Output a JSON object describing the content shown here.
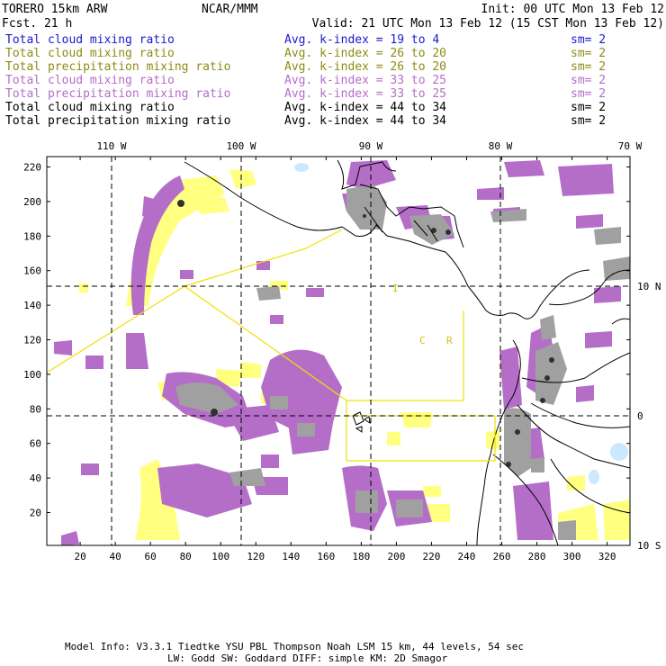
{
  "header": {
    "model": "TORERO  15km ARW",
    "org": "NCAR/MMM",
    "init": "Init: 00 UTC Mon 13 Feb 12",
    "fcst": "Fcst.   21 h",
    "valid": "Valid: 21 UTC Mon 13 Feb 12 (15 CST Mon 13 Feb 12)"
  },
  "legend": [
    {
      "field": "Total cloud mixing ratio",
      "kindex": "Avg. k-index =  19  to   4",
      "sm": "sm= 2",
      "color": "#1a1acc"
    },
    {
      "field": "Total cloud mixing ratio",
      "kindex": "Avg. k-index =  26  to  20",
      "sm": "sm= 2",
      "color": "#8c8c14"
    },
    {
      "field": "Total precipitation mixing ratio",
      "kindex": "Avg. k-index =  26  to  20",
      "sm": "sm= 2",
      "color": "#8c8c14"
    },
    {
      "field": "Total cloud mixing ratio",
      "kindex": "Avg. k-index =  33  to  25",
      "sm": "sm= 2",
      "color": "#b46ec8"
    },
    {
      "field": "Total precipitation mixing ratio",
      "kindex": "Avg. k-index =  33  to  25",
      "sm": "sm= 2",
      "color": "#b46ec8"
    },
    {
      "field": "Total cloud mixing ratio",
      "kindex": "Avg. k-index =  44  to  34",
      "sm": "sm= 2",
      "color": "#000000"
    },
    {
      "field": "Total precipitation mixing ratio",
      "kindex": "Avg. k-index =  44  to  34",
      "sm": "sm= 2",
      "color": "#000000"
    }
  ],
  "lon_labels": [
    "110 W",
    "100 W",
    "90 W",
    "80 W",
    "70 W"
  ],
  "lat_labels": [
    "10 N",
    "0",
    "10 S"
  ],
  "x_ticks": [
    "20",
    "40",
    "60",
    "80",
    "100",
    "120",
    "140",
    "160",
    "180",
    "200",
    "220",
    "240",
    "260",
    "280",
    "300",
    "320"
  ],
  "y_ticks": [
    "20",
    "40",
    "60",
    "80",
    "100",
    "120",
    "140",
    "160",
    "180",
    "200",
    "220"
  ],
  "grid_x_range": [
    1,
    333
  ],
  "grid_y_range": [
    1,
    226
  ],
  "region_labels": [
    "I",
    "C",
    "R"
  ],
  "footer": [
    "Model Info: V3.3.1   Tiedtke YSU PBL  Thompson    Noah LSM  15 km,   44 levels,   54 sec",
    "LW: Godd SW: Goddard DIFF: simple KM: 2D Smagor"
  ],
  "colors": {
    "yellow": "#ffff80",
    "purple": "#b46ec8",
    "gray": "#a0a0a0",
    "dark": "#303030",
    "lightblue": "#cce8ff",
    "line_yellow": "#f0e000"
  }
}
